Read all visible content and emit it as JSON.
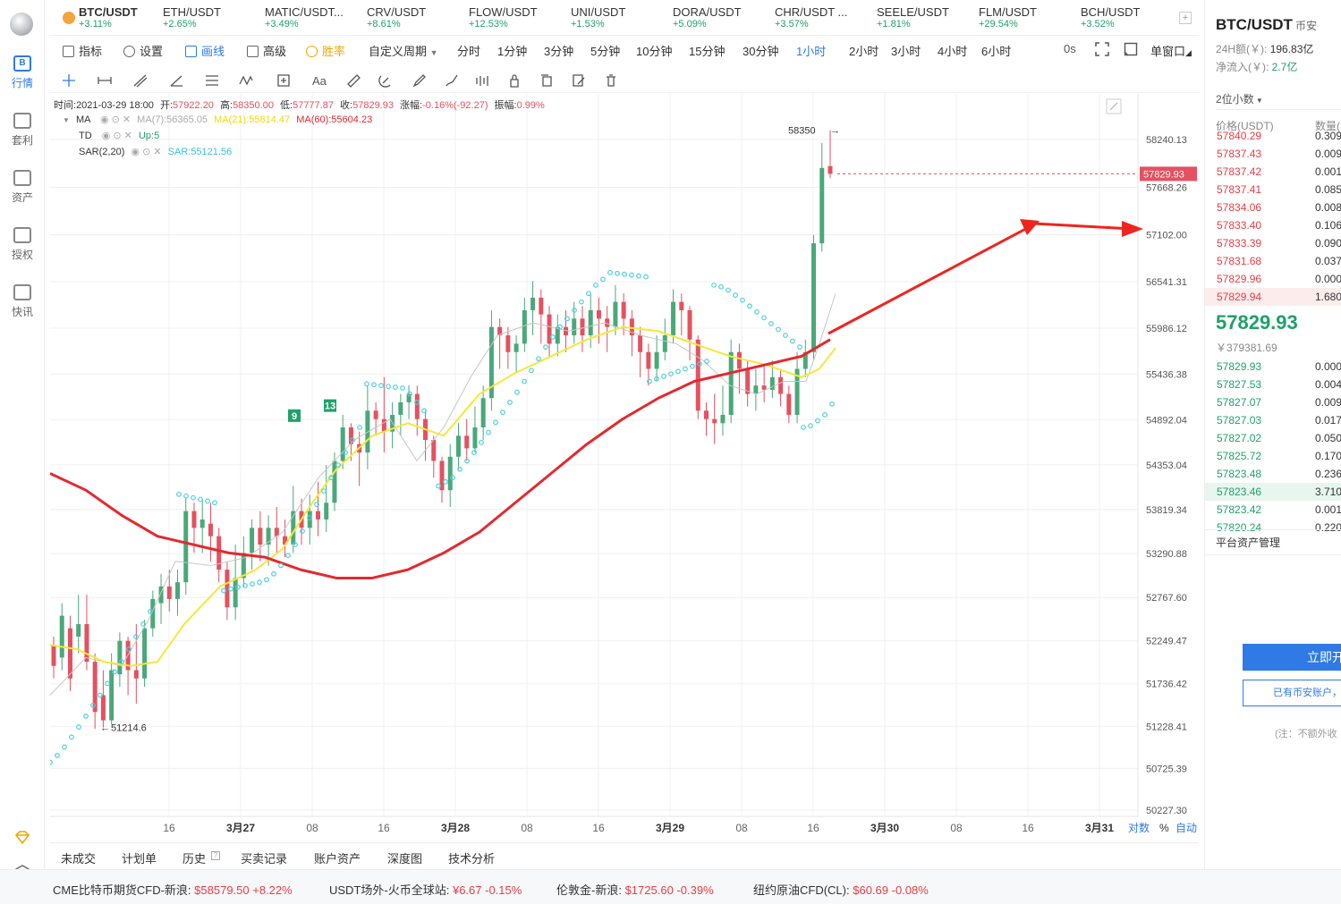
{
  "nav": {
    "items": [
      {
        "label": "行情",
        "icon": "market-icon",
        "glyph": "B",
        "active": true
      },
      {
        "label": "套利",
        "icon": "arbitrage-icon",
        "glyph": "",
        "active": false
      },
      {
        "label": "资产",
        "icon": "assets-icon",
        "glyph": "",
        "active": false
      },
      {
        "label": "授权",
        "icon": "authorize-icon",
        "glyph": "",
        "active": false
      },
      {
        "label": "快讯",
        "icon": "news-icon",
        "glyph": "",
        "active": false
      }
    ]
  },
  "tabs": [
    {
      "name": "BTC/USDT",
      "change": "+3.11%"
    },
    {
      "name": "ETH/USDT",
      "change": "+2.65%"
    },
    {
      "name": "MATIC/USDT...",
      "change": "+3.49%"
    },
    {
      "name": "CRV/USDT",
      "change": "+8.61%"
    },
    {
      "name": "FLOW/USDT",
      "change": "+12.53%"
    },
    {
      "name": "UNI/USDT",
      "change": "+1.53%"
    },
    {
      "name": "DORA/USDT",
      "change": "+5.09%"
    },
    {
      "name": "CHR/USDT ...",
      "change": "+3.57%"
    },
    {
      "name": "SEELE/USDT",
      "change": "+1.81%"
    },
    {
      "name": "FLM/USDT",
      "change": "+29.54%"
    },
    {
      "name": "BCH/USDT",
      "change": "+3.52%"
    }
  ],
  "toolbar": {
    "indicators": "指标",
    "settings": "设置",
    "draw": "画线",
    "advanced": "高级",
    "winrate": "胜率",
    "custom_period": "自定义周期",
    "periods": [
      "分时",
      "1分钟",
      "3分钟",
      "5分钟",
      "10分钟",
      "15分钟",
      "30分钟",
      "1小时",
      "2小时",
      "3小时",
      "4小时",
      "6小时"
    ],
    "active_period": "1小时",
    "countdown": "0s",
    "window": "单窗口"
  },
  "legend": {
    "time_label": "时间:",
    "time": "2021-03-29 18:00",
    "open_label": "开:",
    "open": "57922.20",
    "high_label": "高:",
    "high": "58350.00",
    "low_label": "低:",
    "low": "57777.87",
    "close_label": "收:",
    "close": "57829.93",
    "change_label": "涨幅:",
    "change": "-0.16%(-92.27)",
    "amp_label": "振幅:",
    "amp": "0.99%",
    "ma_name": "MA",
    "ma7": "MA(7):56365.05",
    "ma21": "MA(21):55814.47",
    "ma60": "MA(60):55604.23",
    "td_name": "TD",
    "td_val": "Up:5",
    "sar_name": "SAR(2,20)",
    "sar_val": "SAR:55121.56"
  },
  "chart_data": {
    "type": "candlestick",
    "interval": "1小时",
    "ylim": [
      50000,
      58600
    ],
    "y_ticks": [
      "58240.13",
      "57668.26",
      "57102.00",
      "56541.31",
      "55986.12",
      "55436.38",
      "54892.04",
      "54353.04",
      "53819.34",
      "53290.88",
      "52767.60",
      "52249.47",
      "51736.42",
      "51228.41",
      "50725.39",
      "50227.30"
    ],
    "x_ticks": [
      "16",
      "3月27",
      "08",
      "16",
      "3月28",
      "08",
      "16",
      "3月29",
      "08",
      "16",
      "3月30",
      "08",
      "16",
      "3月31"
    ],
    "current_price": "57829.93",
    "high_marker": "58350",
    "low_marker": "51214.6",
    "td_labels": [
      "9",
      "13"
    ],
    "scale_mode": "对数",
    "percent_mode": "%",
    "auto_mode": "自动",
    "colors": {
      "up": "#4aa87a",
      "down": "#e4515f",
      "ma7": "#c0c0c0",
      "ma21": "#f4e83a",
      "ma60": "#e3292f",
      "sar": "#4fd0dd",
      "arrow": "#f0241e"
    }
  },
  "bottom_tabs": [
    "未成交",
    "计划单",
    "历史",
    "买卖记录",
    "账户资产",
    "深度图",
    "技术分析"
  ],
  "ticker": [
    {
      "label": "CME比特币期货CFD-新浪:",
      "value": "$58579.50",
      "change": "+8.22%"
    },
    {
      "label": "USDT场外-火币全球站:",
      "value": "¥6.67",
      "change": "-0.15%"
    },
    {
      "label": "伦敦金-新浪:",
      "value": "$1725.60",
      "change": "-0.39%"
    },
    {
      "label": "纽约原油CFD(CL):",
      "value": "$60.69",
      "change": "-0.08%"
    }
  ],
  "right": {
    "pair": "BTC/USDT",
    "exchange": "币安",
    "vol_label": "24H额(￥):",
    "vol": "196.83亿",
    "inflow_label": "净流入(￥):",
    "inflow": "2.7亿",
    "decimals": "2位小数",
    "col_price": "价格(USDT)",
    "col_qty": "数量(",
    "asks": [
      {
        "p": "57840.29",
        "q": "0.309"
      },
      {
        "p": "57837.43",
        "q": "0.009"
      },
      {
        "p": "57837.42",
        "q": "0.001"
      },
      {
        "p": "57837.41",
        "q": "0.085"
      },
      {
        "p": "57834.06",
        "q": "0.008"
      },
      {
        "p": "57833.40",
        "q": "0.106"
      },
      {
        "p": "57833.39",
        "q": "0.090"
      },
      {
        "p": "57831.68",
        "q": "0.037"
      },
      {
        "p": "57829.96",
        "q": "0.000"
      },
      {
        "p": "57829.94",
        "q": "1.680"
      }
    ],
    "last_price": "57829.93",
    "last_cny": "￥379381.69",
    "bids": [
      {
        "p": "57829.93",
        "q": "0.000"
      },
      {
        "p": "57827.53",
        "q": "0.004"
      },
      {
        "p": "57827.07",
        "q": "0.009"
      },
      {
        "p": "57827.03",
        "q": "0.017"
      },
      {
        "p": "57827.02",
        "q": "0.050"
      },
      {
        "p": "57825.72",
        "q": "0.170"
      },
      {
        "p": "57823.48",
        "q": "0.236"
      },
      {
        "p": "57823.46",
        "q": "3.710"
      },
      {
        "p": "57823.42",
        "q": "0.001"
      },
      {
        "p": "57820.24",
        "q": "0.220"
      }
    ],
    "asset_mgmt": "平台资产管理",
    "open_btn": "立即开",
    "acct_btn": "已有币安账户，",
    "note": "(注：不额外收"
  }
}
